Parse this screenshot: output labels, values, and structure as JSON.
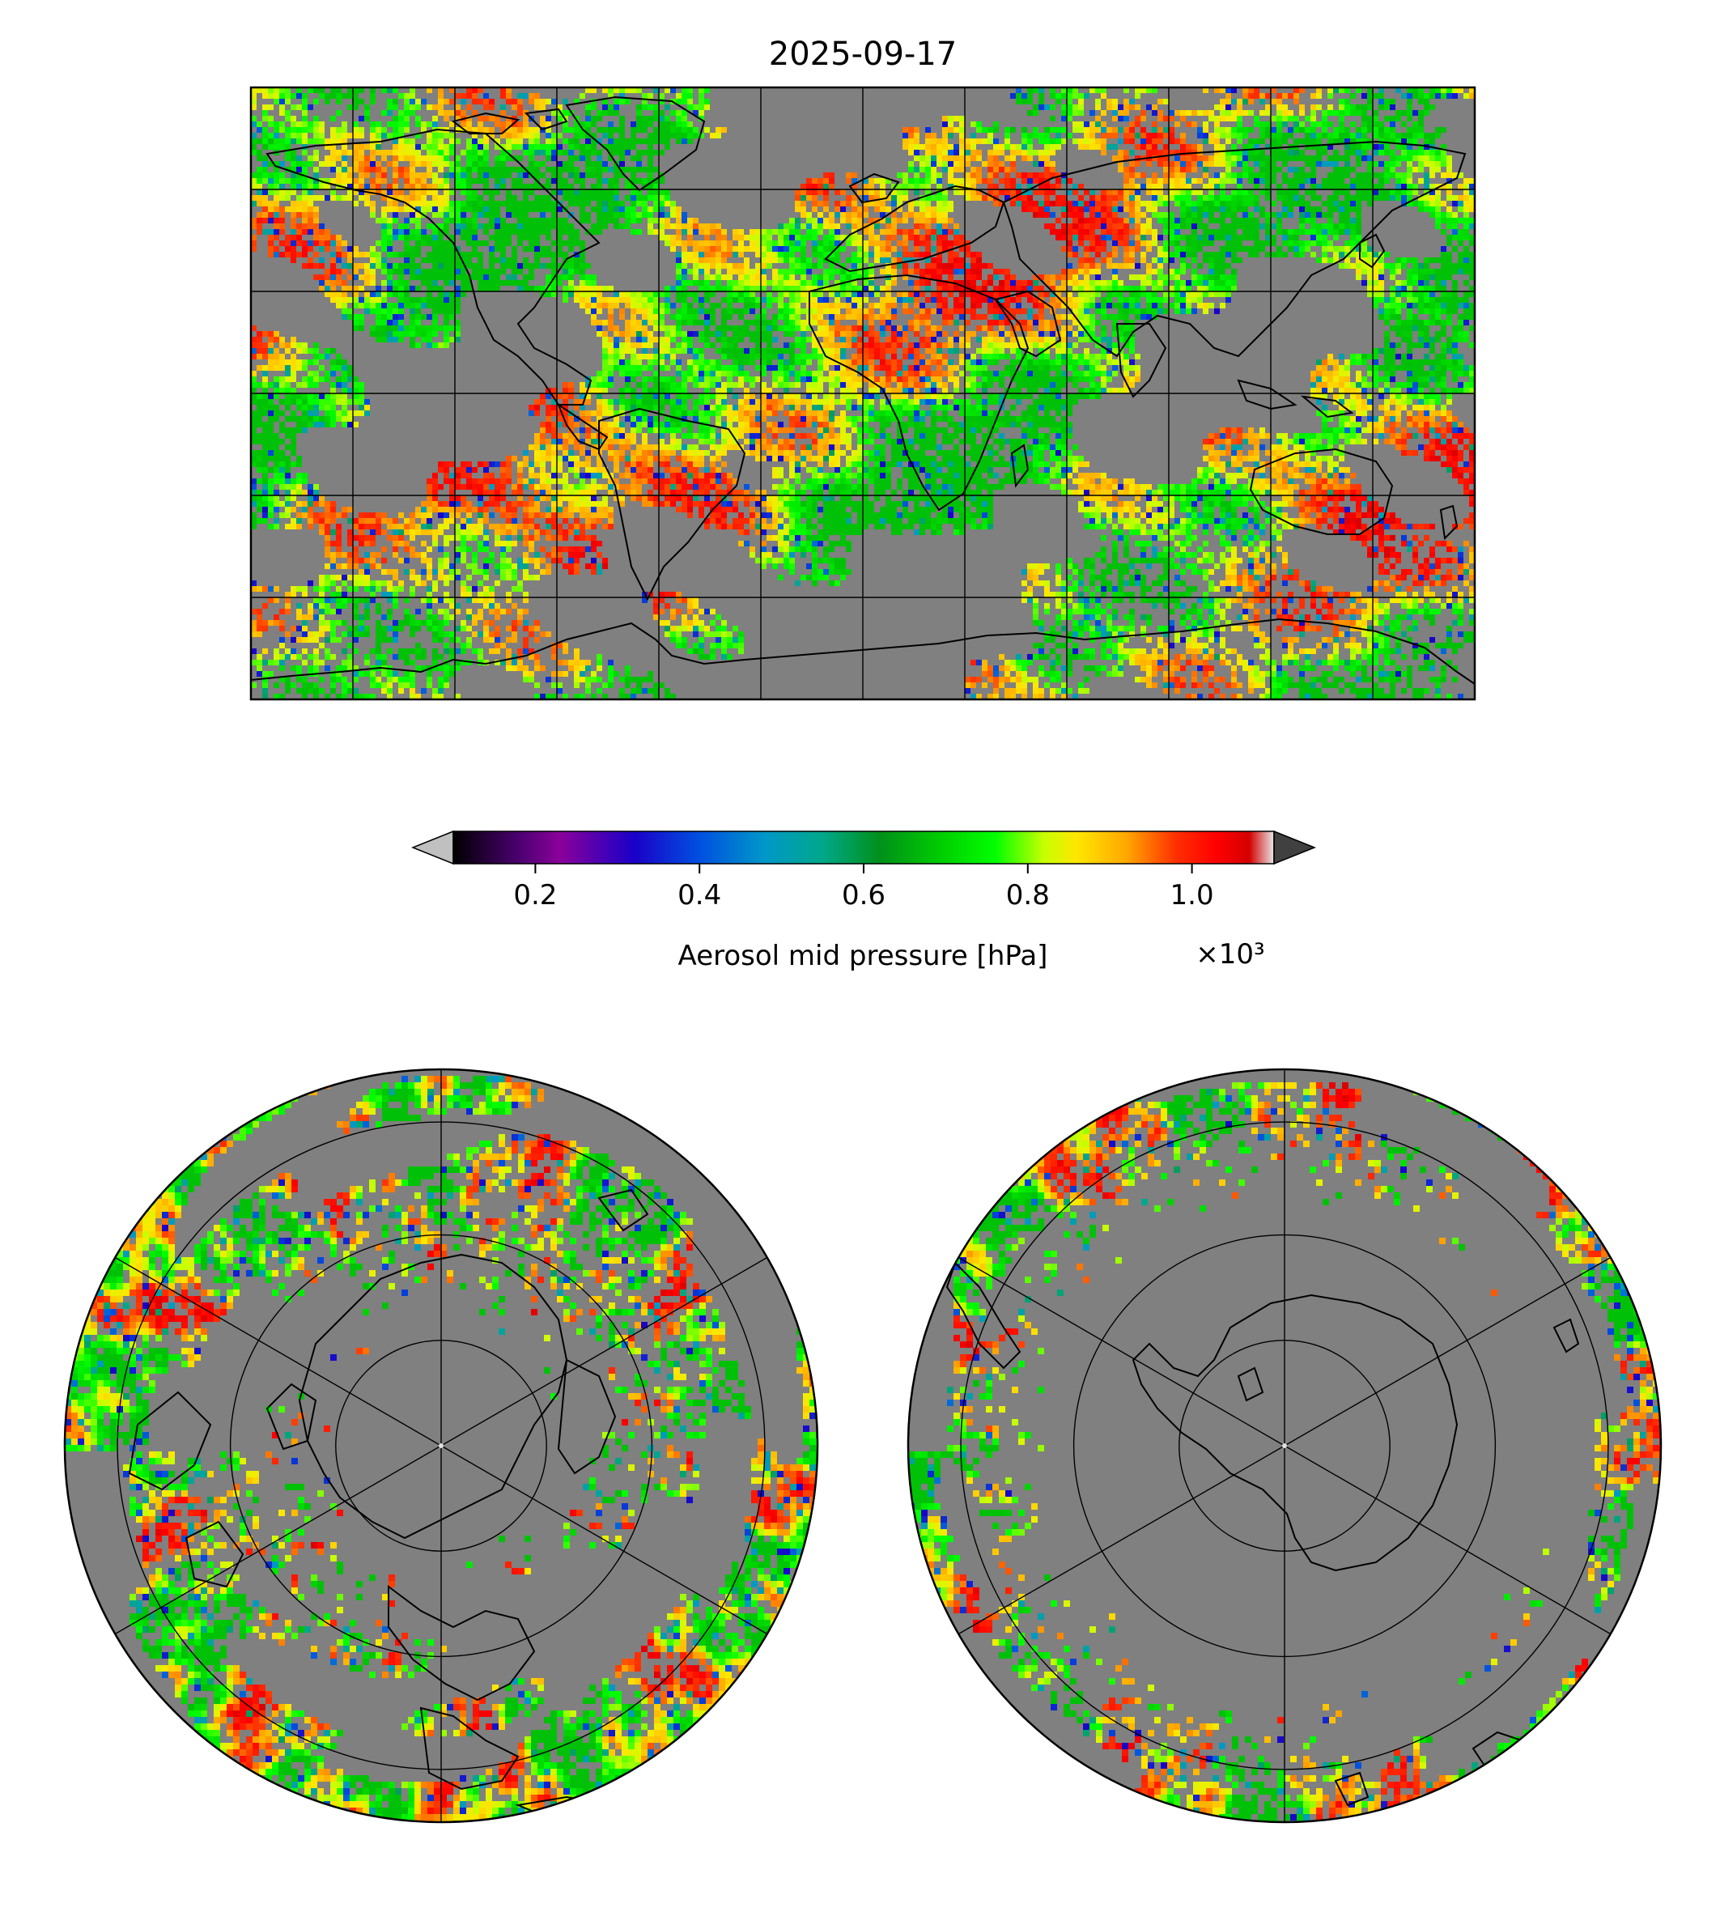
{
  "title": "2025-09-17",
  "colors": {
    "no_data": "#808080",
    "frame": "#000000",
    "background": "#ffffff",
    "under": "#c0c0c0",
    "over": "#404040"
  },
  "colorbar": {
    "label": "Aerosol mid pressure [hPa]",
    "offset_text": "×10³",
    "vmin": 0.1,
    "vmax": 1.1,
    "ticks": [
      0.2,
      0.4,
      0.6,
      0.8,
      1.0
    ],
    "tick_labels": [
      "0.2",
      "0.4",
      "0.6",
      "0.8",
      "1.0"
    ],
    "extend": "both",
    "stops": [
      {
        "v": 0.0,
        "c": "#000000"
      },
      {
        "v": 0.08,
        "c": "#4b0070"
      },
      {
        "v": 0.13,
        "c": "#8a009a"
      },
      {
        "v": 0.22,
        "c": "#1a00c8"
      },
      {
        "v": 0.3,
        "c": "#0050e0"
      },
      {
        "v": 0.38,
        "c": "#0098c8"
      },
      {
        "v": 0.45,
        "c": "#00a88a"
      },
      {
        "v": 0.52,
        "c": "#00901a"
      },
      {
        "v": 0.6,
        "c": "#00d200"
      },
      {
        "v": 0.66,
        "c": "#00ff00"
      },
      {
        "v": 0.72,
        "c": "#c8ff00"
      },
      {
        "v": 0.76,
        "c": "#ffe600"
      },
      {
        "v": 0.82,
        "c": "#ffa800"
      },
      {
        "v": 0.88,
        "c": "#ff3000"
      },
      {
        "v": 0.93,
        "c": "#ff0000"
      },
      {
        "v": 0.97,
        "c": "#d40000"
      },
      {
        "v": 1.0,
        "c": "#e8e8e8"
      }
    ]
  },
  "maps": {
    "global": {
      "projection": "plate-carree",
      "gridlines": true
    },
    "north_polar": {
      "projection": "north-polar-stereographic",
      "gridlines": true
    },
    "south_polar": {
      "projection": "south-polar-stereographic",
      "gridlines": true
    }
  }
}
